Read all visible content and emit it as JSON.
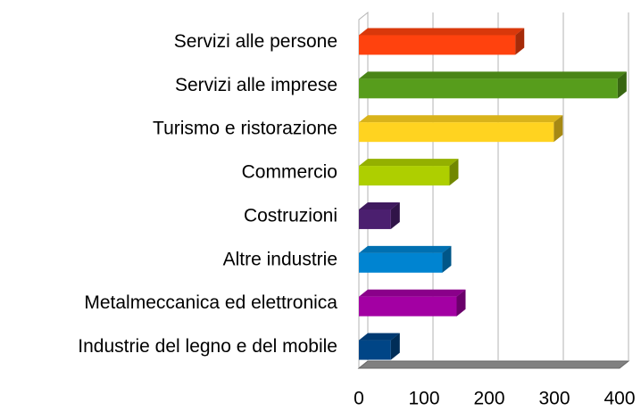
{
  "chart_data": {
    "type": "bar",
    "orientation": "horizontal",
    "three_d": true,
    "categories": [
      "Servizi alle persone",
      "Servizi alle imprese",
      "Turismo e ristorazione",
      "Commercio",
      "Costruzioni",
      "Altre industrie",
      "Metalmeccanica ed elettronica",
      "Industrie del legno e del mobile"
    ],
    "values": [
      240,
      397,
      299,
      139,
      49,
      128,
      150,
      49
    ],
    "colors": [
      "#ff420e",
      "#579d1c",
      "#ffd320",
      "#aecf00",
      "#4b1f6f",
      "#0084d1",
      "#a300a3",
      "#004586"
    ],
    "xlim": [
      0,
      400
    ],
    "xticks": [
      0,
      100,
      200,
      300,
      400
    ],
    "grid": true
  }
}
